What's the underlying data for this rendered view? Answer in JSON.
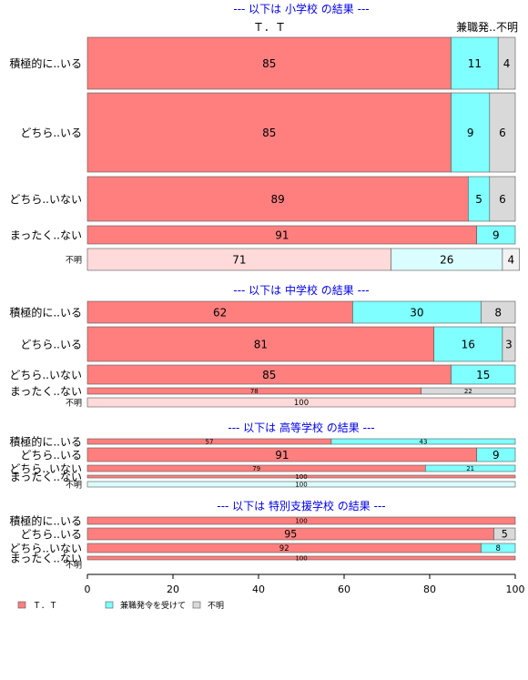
{
  "chart_data": {
    "type": "bar",
    "orientation": "horizontal",
    "stacked": true,
    "xlim": [
      0,
      100
    ],
    "xticks": [
      0,
      20,
      40,
      60,
      80,
      100
    ],
    "legend": {
      "position": "bottom-left",
      "entries": [
        {
          "name": "Ｔ．Ｔ",
          "color": "#ff7f7f"
        },
        {
          "name": "兼職発令を受けて",
          "color": "#7fffff"
        },
        {
          "name": "不明",
          "color": "#d9d9d9"
        }
      ]
    },
    "column_headers": [
      "Ｔ．Ｔ",
      "兼職発..",
      "不明"
    ],
    "panels": [
      {
        "title": "--- 以下は 小学校 の結果 ---",
        "rows": [
          {
            "label": "積極的に..いる",
            "values": [
              85,
              11,
              4
            ]
          },
          {
            "label": "どちら..いる",
            "values": [
              85,
              9,
              6
            ]
          },
          {
            "label": "どちら..いない",
            "values": [
              89,
              5,
              6
            ]
          },
          {
            "label": "まったく..ない",
            "values": [
              91,
              9,
              0
            ]
          },
          {
            "label": "不明",
            "values": [
              71,
              26,
              4
            ],
            "faded": true
          }
        ]
      },
      {
        "title": "--- 以下は 中学校 の結果 ---",
        "rows": [
          {
            "label": "積極的に..いる",
            "values": [
              62,
              30,
              8
            ]
          },
          {
            "label": "どちら..いる",
            "values": [
              81,
              16,
              3
            ]
          },
          {
            "label": "どちら..いない",
            "values": [
              85,
              15,
              0
            ]
          },
          {
            "label": "まったく..ない",
            "values": [
              78,
              0,
              22
            ]
          },
          {
            "label": "不明",
            "values": [
              100,
              0,
              0
            ],
            "faded": true
          }
        ]
      },
      {
        "title": "--- 以下は 高等学校 の結果 ---",
        "rows": [
          {
            "label": "積極的に..いる",
            "values": [
              57,
              43,
              0
            ]
          },
          {
            "label": "どちら..いる",
            "values": [
              91,
              9,
              0
            ]
          },
          {
            "label": "どちら..いない",
            "values": [
              79,
              21,
              0
            ]
          },
          {
            "label": "まったく..ない",
            "values": [
              100,
              0,
              0
            ]
          },
          {
            "label": "不明",
            "values": [
              0,
              100,
              0
            ],
            "faded": true
          }
        ]
      },
      {
        "title": "--- 以下は 特別支援学校 の結果 ---",
        "rows": [
          {
            "label": "積極的に..いる",
            "values": [
              100,
              0,
              0
            ]
          },
          {
            "label": "どちら..いる",
            "values": [
              95,
              0,
              5
            ]
          },
          {
            "label": "どちら..いない",
            "values": [
              92,
              8,
              0
            ]
          },
          {
            "label": "まったく..ない",
            "values": [
              100,
              0,
              0
            ]
          },
          {
            "label": "不明",
            "values": [
              0,
              0,
              0
            ],
            "faded": true
          }
        ]
      }
    ]
  }
}
